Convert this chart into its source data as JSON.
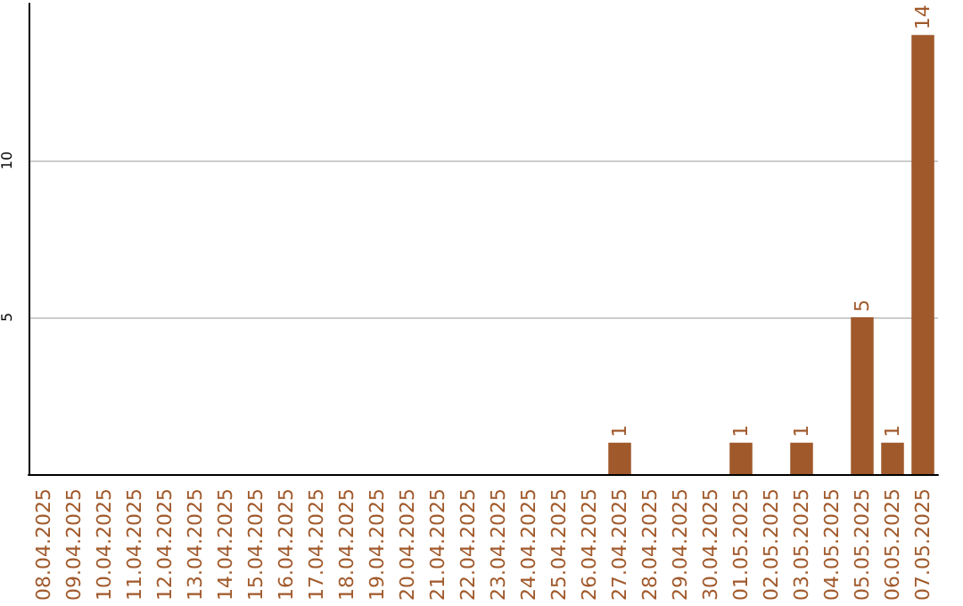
{
  "chart_data": {
    "type": "bar",
    "categories": [
      "08.04.2025",
      "09.04.2025",
      "10.04.2025",
      "11.04.2025",
      "12.04.2025",
      "13.04.2025",
      "14.04.2025",
      "15.04.2025",
      "16.04.2025",
      "17.04.2025",
      "18.04.2025",
      "19.04.2025",
      "20.04.2025",
      "21.04.2025",
      "22.04.2025",
      "23.04.2025",
      "24.04.2025",
      "25.04.2025",
      "26.04.2025",
      "27.04.2025",
      "28.04.2025",
      "29.04.2025",
      "30.04.2025",
      "01.05.2025",
      "02.05.2025",
      "03.05.2025",
      "04.05.2025",
      "05.05.2025",
      "06.05.2025",
      "07.05.2025"
    ],
    "values": [
      0,
      0,
      0,
      0,
      0,
      0,
      0,
      0,
      0,
      0,
      0,
      0,
      0,
      0,
      0,
      0,
      0,
      0,
      0,
      1,
      0,
      0,
      0,
      1,
      0,
      1,
      0,
      5,
      1,
      14
    ],
    "value_labels": [
      null,
      null,
      null,
      null,
      null,
      null,
      null,
      null,
      null,
      null,
      null,
      null,
      null,
      null,
      null,
      null,
      null,
      null,
      null,
      "1",
      null,
      null,
      null,
      "1",
      null,
      "1",
      null,
      "5",
      "1",
      "14"
    ],
    "color": "#a0592b",
    "ylim": [
      0,
      15
    ],
    "yticks": [
      5,
      10
    ],
    "grid": "y"
  }
}
